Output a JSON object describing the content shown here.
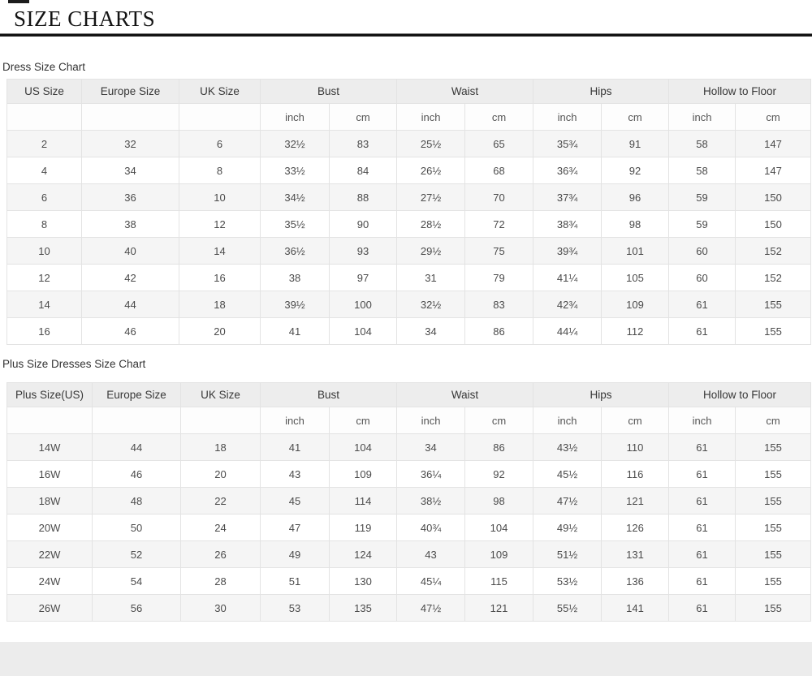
{
  "page": {
    "title": "SIZE CHARTS"
  },
  "tables": [
    {
      "label": "Dress Size Chart",
      "simple_headers": [
        "US Size",
        "Europe Size",
        "UK Size"
      ],
      "measure_headers": [
        "Bust",
        "Waist",
        "Hips",
        "Hollow to Floor"
      ],
      "unit_headers": [
        "inch",
        "cm"
      ],
      "rows": [
        [
          "2",
          "32",
          "6",
          "32½",
          "83",
          "25½",
          "65",
          "35¾",
          "91",
          "58",
          "147"
        ],
        [
          "4",
          "34",
          "8",
          "33½",
          "84",
          "26½",
          "68",
          "36¾",
          "92",
          "58",
          "147"
        ],
        [
          "6",
          "36",
          "10",
          "34½",
          "88",
          "27½",
          "70",
          "37¾",
          "96",
          "59",
          "150"
        ],
        [
          "8",
          "38",
          "12",
          "35½",
          "90",
          "28½",
          "72",
          "38¾",
          "98",
          "59",
          "150"
        ],
        [
          "10",
          "40",
          "14",
          "36½",
          "93",
          "29½",
          "75",
          "39¾",
          "101",
          "60",
          "152"
        ],
        [
          "12",
          "42",
          "16",
          "38",
          "97",
          "31",
          "79",
          "41¼",
          "105",
          "60",
          "152"
        ],
        [
          "14",
          "44",
          "18",
          "39½",
          "100",
          "32½",
          "83",
          "42¾",
          "109",
          "61",
          "155"
        ],
        [
          "16",
          "46",
          "20",
          "41",
          "104",
          "34",
          "86",
          "44¼",
          "112",
          "61",
          "155"
        ]
      ]
    },
    {
      "label": "Plus Size Dresses Size Chart",
      "simple_headers": [
        "Plus Size(US)",
        "Europe Size",
        "UK Size"
      ],
      "measure_headers": [
        "Bust",
        "Waist",
        "Hips",
        "Hollow to Floor"
      ],
      "unit_headers": [
        "inch",
        "cm"
      ],
      "rows": [
        [
          "14W",
          "44",
          "18",
          "41",
          "104",
          "34",
          "86",
          "43½",
          "110",
          "61",
          "155"
        ],
        [
          "16W",
          "46",
          "20",
          "43",
          "109",
          "36¼",
          "92",
          "45½",
          "116",
          "61",
          "155"
        ],
        [
          "18W",
          "48",
          "22",
          "45",
          "114",
          "38½",
          "98",
          "47½",
          "121",
          "61",
          "155"
        ],
        [
          "20W",
          "50",
          "24",
          "47",
          "119",
          "40¾",
          "104",
          "49½",
          "126",
          "61",
          "155"
        ],
        [
          "22W",
          "52",
          "26",
          "49",
          "124",
          "43",
          "109",
          "51½",
          "131",
          "61",
          "155"
        ],
        [
          "24W",
          "54",
          "28",
          "51",
          "130",
          "45¼",
          "115",
          "53½",
          "136",
          "61",
          "155"
        ],
        [
          "26W",
          "56",
          "30",
          "53",
          "135",
          "47½",
          "121",
          "55½",
          "141",
          "61",
          "155"
        ]
      ]
    }
  ],
  "colors": {
    "header_bg": "#ededed",
    "odd_row_bg": "#f5f5f5",
    "border": "#e3e3e3",
    "rule": "#141414",
    "footer_band": "#ececec"
  }
}
